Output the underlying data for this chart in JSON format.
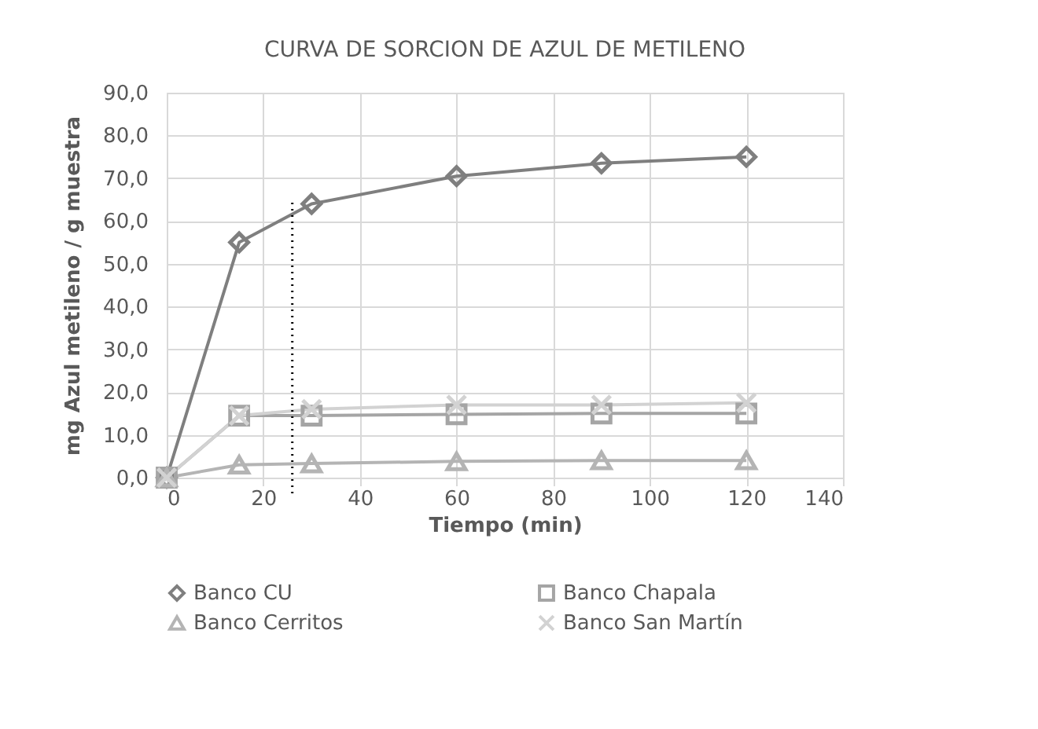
{
  "chart_data": {
    "type": "line",
    "title": "CURVA DE SORCION DE AZUL DE METILENO",
    "xlabel": "Tiempo (min)",
    "ylabel": "mg Azul metileno / g muestra",
    "x": [
      0,
      15,
      30,
      60,
      90,
      120
    ],
    "series": [
      {
        "name": "Banco CU",
        "color": "#7f7f7f",
        "marker": "diamond",
        "values": [
          0,
          55,
          64,
          70.5,
          73.5,
          75
        ]
      },
      {
        "name": "Banco Chapala",
        "color": "#a5a5a5",
        "marker": "square",
        "values": [
          0,
          14.5,
          14.5,
          14.8,
          15,
          15
        ]
      },
      {
        "name": "Banco Cerritos",
        "color": "#b4b4b4",
        "marker": "triangle",
        "values": [
          0,
          3,
          3.3,
          3.8,
          4,
          4
        ]
      },
      {
        "name": "Banco San Martín",
        "color": "#d2d2d2",
        "marker": "cross",
        "values": [
          0,
          14.5,
          16,
          17,
          17,
          17.5
        ]
      }
    ],
    "xlim": [
      0,
      140
    ],
    "xticks": [
      0,
      20,
      40,
      60,
      80,
      100,
      120,
      140
    ],
    "ylim": [
      0,
      90
    ],
    "yticks": [
      {
        "value": 0,
        "label": "0,0"
      },
      {
        "value": 10,
        "label": "10,0"
      },
      {
        "value": 20,
        "label": "20,0"
      },
      {
        "value": 30,
        "label": "30,0"
      },
      {
        "value": 40,
        "label": "40,0"
      },
      {
        "value": 50,
        "label": "50,0"
      },
      {
        "value": 60,
        "label": "60,0"
      },
      {
        "value": 70,
        "label": "70,0"
      },
      {
        "value": 80,
        "label": "80,0"
      },
      {
        "value": 90,
        "label": "90,0"
      }
    ],
    "ref_lines": [
      {
        "axis": "x",
        "value": 26,
        "color": "#000000",
        "line_style": "dotted"
      }
    ],
    "grid": true,
    "legend": "bottom",
    "line_style": "solid"
  }
}
